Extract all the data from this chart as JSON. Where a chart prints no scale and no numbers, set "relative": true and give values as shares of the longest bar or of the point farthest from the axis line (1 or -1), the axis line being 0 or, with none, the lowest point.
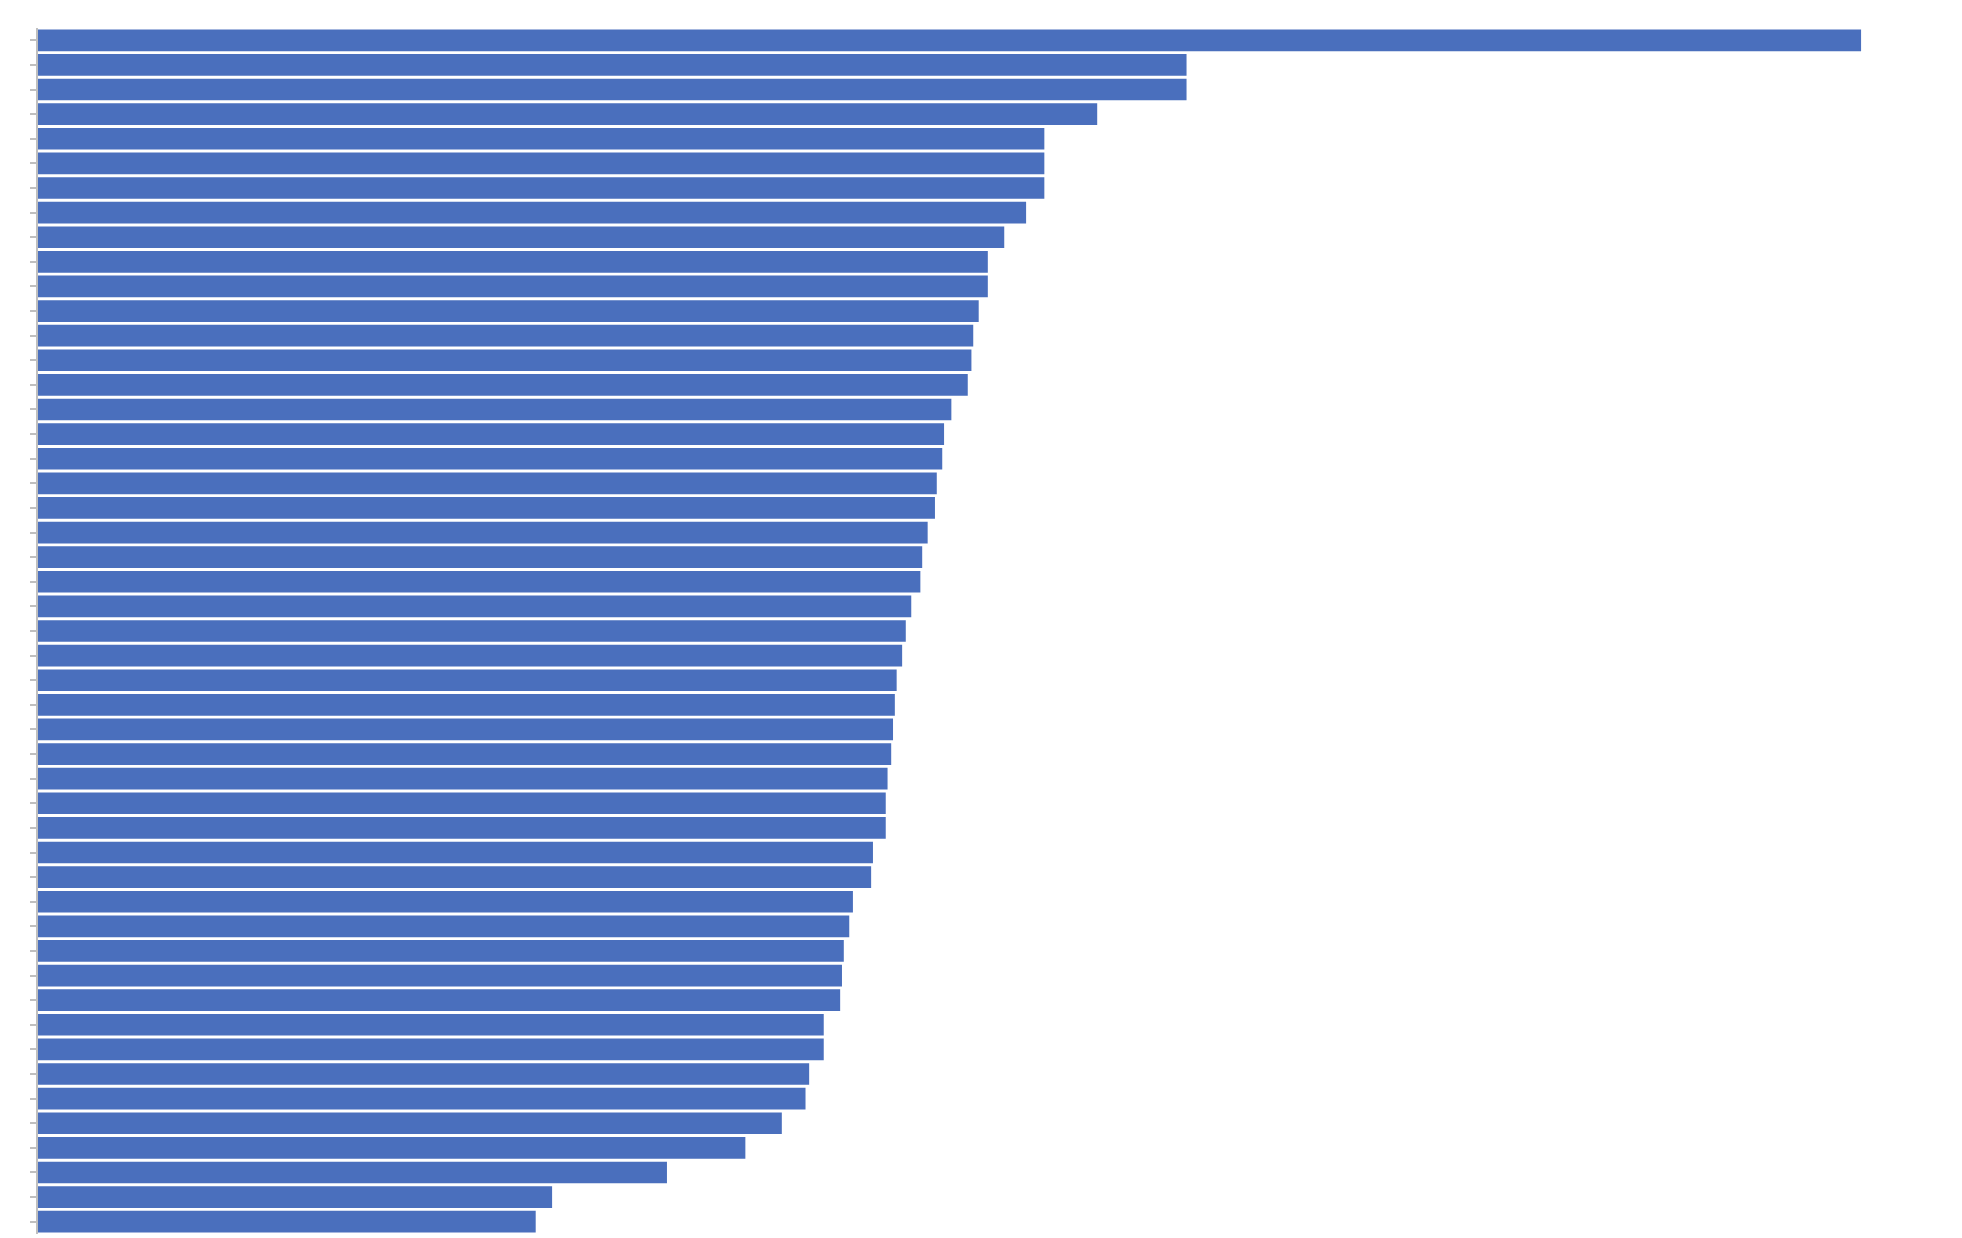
{
  "chart_data": {
    "type": "bar",
    "orientation": "horizontal",
    "relative": true,
    "color": "#4a6fbd",
    "categories": [
      null,
      null,
      null,
      null,
      null,
      null,
      null,
      null,
      null,
      null,
      null,
      null,
      null,
      null,
      null,
      null,
      null,
      null,
      null,
      null,
      null,
      null,
      null,
      null,
      null,
      null,
      null,
      null,
      null,
      null,
      null,
      null,
      null,
      null,
      null,
      null,
      null,
      null,
      null,
      null,
      null,
      null,
      null,
      null,
      null,
      null,
      null,
      null,
      null
    ],
    "values": [
      1.0,
      0.63,
      0.63,
      0.581,
      0.552,
      0.552,
      0.552,
      0.542,
      0.53,
      0.521,
      0.521,
      0.516,
      0.513,
      0.512,
      0.51,
      0.501,
      0.497,
      0.496,
      0.493,
      0.492,
      0.488,
      0.485,
      0.484,
      0.479,
      0.476,
      0.474,
      0.471,
      0.47,
      0.469,
      0.468,
      0.466,
      0.465,
      0.465,
      0.458,
      0.457,
      0.447,
      0.445,
      0.442,
      0.441,
      0.44,
      0.431,
      0.431,
      0.423,
      0.421,
      0.408,
      0.388,
      0.345,
      0.282,
      0.273
    ]
  }
}
